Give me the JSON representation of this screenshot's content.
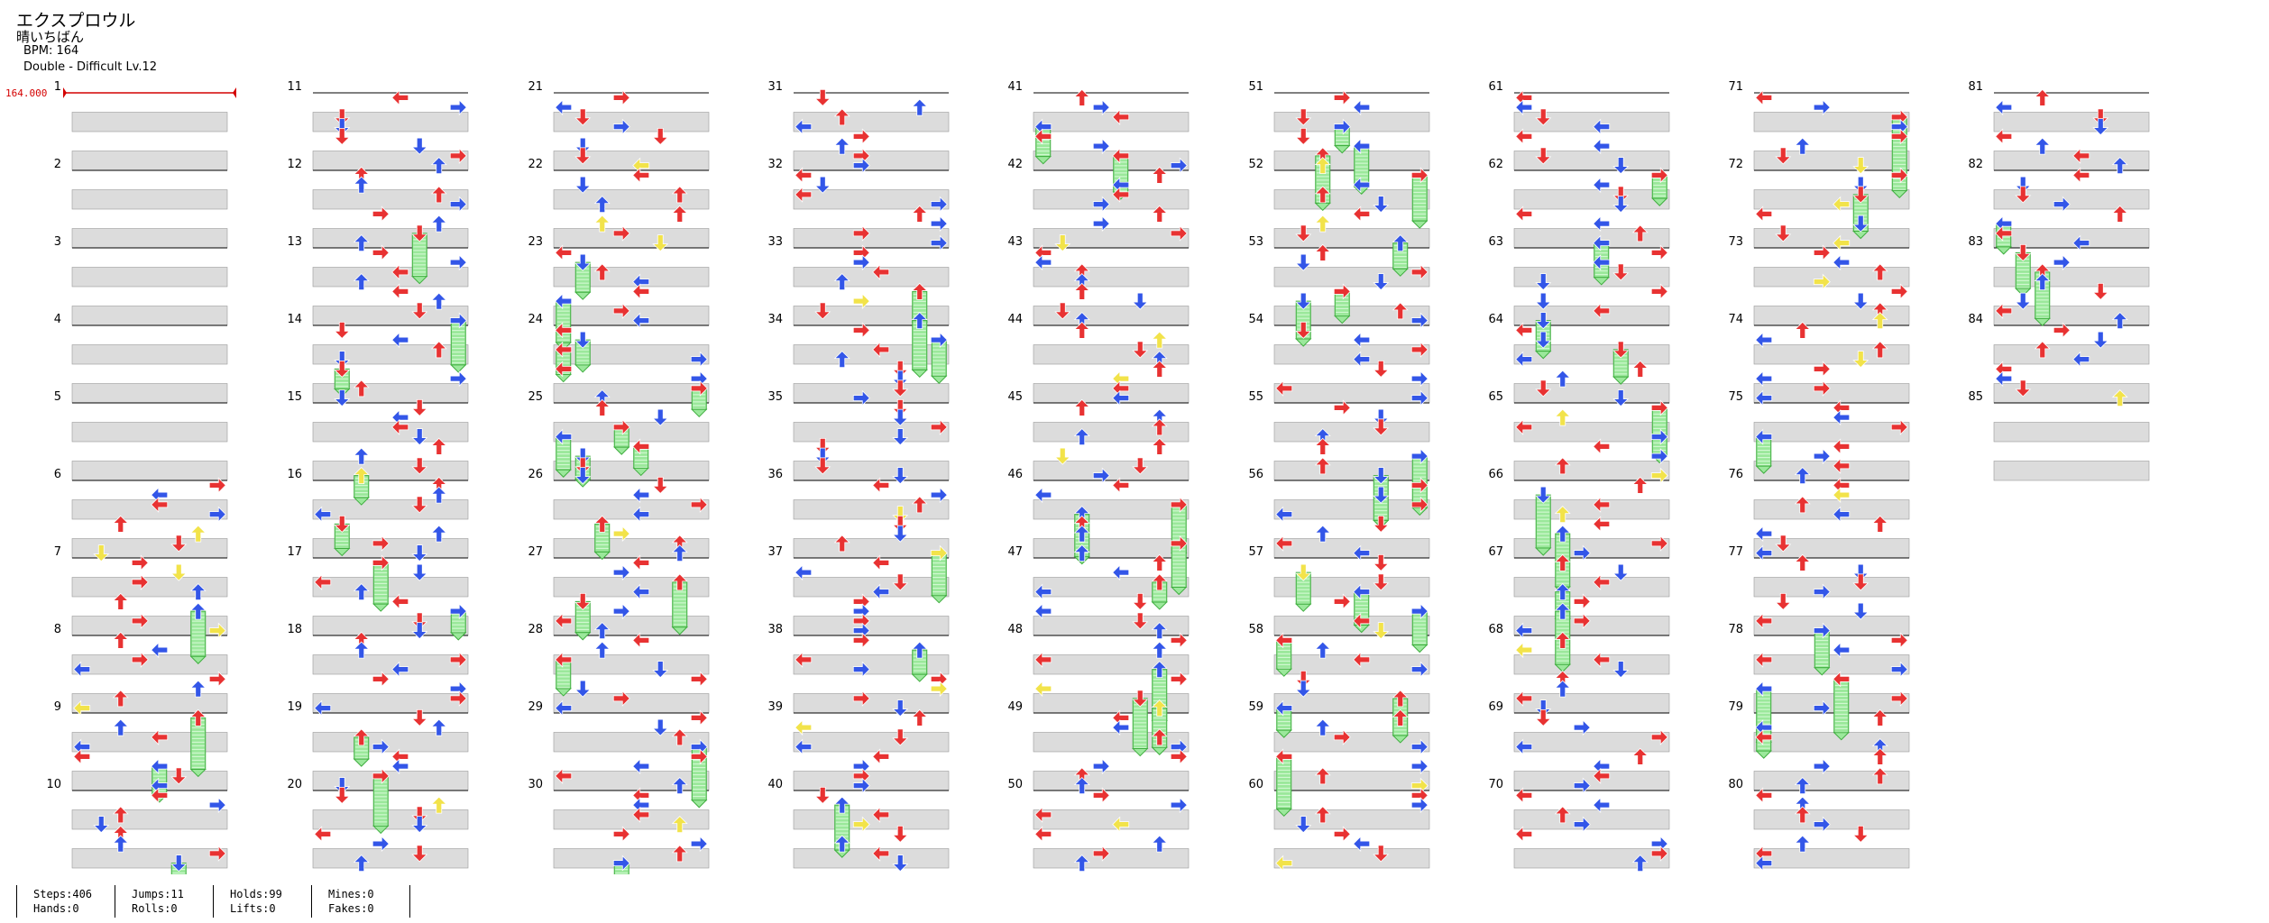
{
  "song": {
    "title": "エクスプロウル",
    "artist": "晴いちばん",
    "bpm_line": "BPM: 164",
    "chart_line": "Double - Difficult  Lv.12"
  },
  "bpm_marker": "164.000",
  "measure_count": 85,
  "stats": {
    "steps": "Steps:406",
    "hands": "Hands:0",
    "jumps": "Jumps:11",
    "rolls": "Rolls:0",
    "holds": "Holds:99",
    "lifts": "Lifts:0",
    "mines": "Mines:0",
    "fakes": "Fakes:0"
  },
  "colors": {
    "quarter": "#e83232",
    "eighth": "#3356e8",
    "sixteenth": "#f2e34a",
    "hold": "#9be89b",
    "hold_edge": "#3fae3f",
    "row_gray": "#dcdcdc",
    "measure_line": "#000000",
    "bpm_marker": "#d40000"
  }
}
